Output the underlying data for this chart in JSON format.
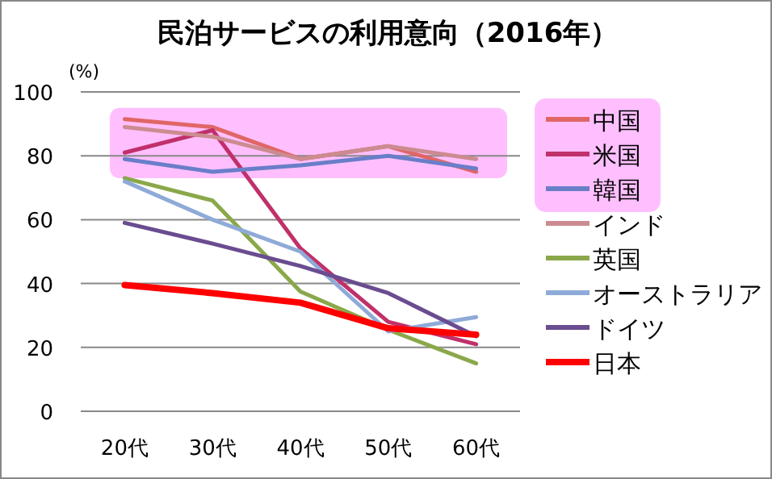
{
  "chart_data": {
    "type": "line",
    "title": "民泊サービスの利用意向（2016年）",
    "ylabel": "(%)",
    "categories": [
      "20代",
      "30代",
      "40代",
      "50代",
      "60代"
    ],
    "ylim": [
      0,
      100
    ],
    "yticks": [
      0,
      20,
      40,
      60,
      80,
      100
    ],
    "grid": "y",
    "legend": "right",
    "marker": "none",
    "line_style": "solid",
    "bands": [
      {
        "axis": "y",
        "from": 73,
        "to": 95,
        "color": "#ffbfff"
      }
    ],
    "series": [
      {
        "name": "中国",
        "color": "#e06666",
        "values": [
          91.5,
          89,
          79,
          83,
          75
        ]
      },
      {
        "name": "米国",
        "color": "#c0306a",
        "values": [
          81,
          88,
          51,
          28,
          21
        ]
      },
      {
        "name": "韓国",
        "color": "#6a7ec8",
        "values": [
          79,
          75,
          77,
          80,
          76
        ]
      },
      {
        "name": "インド",
        "color": "#cc8b90",
        "values": [
          89,
          86,
          79,
          83,
          79
        ]
      },
      {
        "name": "英国",
        "color": "#8aa84a",
        "values": [
          73,
          66,
          37.5,
          25.5,
          15
        ]
      },
      {
        "name": "オーストラリア",
        "color": "#8eaad8",
        "values": [
          72,
          60,
          50,
          25,
          29.5
        ]
      },
      {
        "name": "ドイツ",
        "color": "#6a4c90",
        "values": [
          59,
          52.5,
          45.5,
          37,
          23.5
        ]
      },
      {
        "name": "日本",
        "color": "#ff0000",
        "values": [
          39.5,
          37,
          34,
          26,
          24
        ]
      }
    ]
  }
}
